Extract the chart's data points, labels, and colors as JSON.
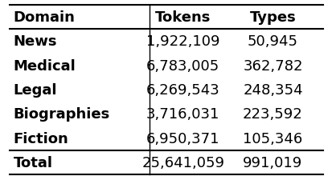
{
  "col_headers": [
    "Domain",
    "Tokens",
    "Types"
  ],
  "rows": [
    [
      "News",
      "1,922,109",
      "50,945"
    ],
    [
      "Medical",
      "6,783,005",
      "362,782"
    ],
    [
      "Legal",
      "6,269,543",
      "248,354"
    ],
    [
      "Biographies",
      "3,716,031",
      "223,592"
    ],
    [
      "Fiction",
      "6,950,371",
      "105,346"
    ]
  ],
  "total_row": [
    "Total",
    "25,641,059",
    "991,019"
  ],
  "bg_color": "#ffffff",
  "text_color": "#000000",
  "header_fontsize": 13,
  "body_fontsize": 13,
  "figsize": [
    4.14,
    2.26
  ],
  "dpi": 100
}
